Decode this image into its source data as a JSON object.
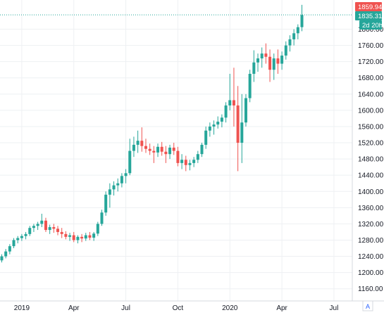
{
  "colors": {
    "up": "#26a69a",
    "down": "#ef5350",
    "grid": "#eef0f3",
    "axis_text": "#131722",
    "last_price_line": "#26a69a"
  },
  "badges": {
    "high": "1859.94",
    "last": "1835.31",
    "countdown": "2d 20h"
  },
  "axis_mode_button": "A",
  "chart_data": {
    "type": "candlestick",
    "timeframe": "weekly",
    "y_ticks": [
      "1160.00",
      "1200.00",
      "1240.00",
      "1280.00",
      "1320.00",
      "1360.00",
      "1400.00",
      "1440.00",
      "1480.00",
      "1520.00",
      "1560.00",
      "1600.00",
      "1640.00",
      "1680.00",
      "1720.00",
      "1760.00",
      "1800.00"
    ],
    "x_ticks": [
      {
        "label": "2019",
        "index": 5
      },
      {
        "label": "Apr",
        "index": 18
      },
      {
        "label": "Jul",
        "index": 31
      },
      {
        "label": "Oct",
        "index": 44
      },
      {
        "label": "2020",
        "index": 57
      },
      {
        "label": "Apr",
        "index": 70
      },
      {
        "label": "Jul",
        "index": 83
      }
    ],
    "ylim": [
      1130,
      1872
    ],
    "grid": true,
    "last_price": 1835.31,
    "high_price": 1859.94,
    "candles": [
      [
        1230,
        1245,
        1225,
        1240
      ],
      [
        1240,
        1258,
        1235,
        1252
      ],
      [
        1252,
        1270,
        1245,
        1265
      ],
      [
        1265,
        1285,
        1260,
        1280
      ],
      [
        1280,
        1290,
        1272,
        1285
      ],
      [
        1285,
        1295,
        1278,
        1290
      ],
      [
        1290,
        1300,
        1282,
        1295
      ],
      [
        1295,
        1315,
        1290,
        1310
      ],
      [
        1310,
        1320,
        1300,
        1315
      ],
      [
        1315,
        1325,
        1305,
        1320
      ],
      [
        1320,
        1345,
        1312,
        1328
      ],
      [
        1328,
        1335,
        1300,
        1305
      ],
      [
        1305,
        1318,
        1295,
        1312
      ],
      [
        1312,
        1320,
        1298,
        1308
      ],
      [
        1308,
        1315,
        1292,
        1300
      ],
      [
        1300,
        1310,
        1285,
        1295
      ],
      [
        1295,
        1302,
        1282,
        1288
      ],
      [
        1288,
        1298,
        1278,
        1292
      ],
      [
        1292,
        1300,
        1275,
        1280
      ],
      [
        1280,
        1292,
        1272,
        1288
      ],
      [
        1288,
        1295,
        1275,
        1284
      ],
      [
        1284,
        1298,
        1278,
        1292
      ],
      [
        1292,
        1300,
        1280,
        1286
      ],
      [
        1286,
        1300,
        1278,
        1296
      ],
      [
        1296,
        1325,
        1290,
        1320
      ],
      [
        1320,
        1355,
        1315,
        1348
      ],
      [
        1348,
        1400,
        1340,
        1392
      ],
      [
        1392,
        1420,
        1360,
        1405
      ],
      [
        1405,
        1425,
        1390,
        1415
      ],
      [
        1415,
        1432,
        1400,
        1420
      ],
      [
        1420,
        1445,
        1410,
        1438
      ],
      [
        1438,
        1455,
        1420,
        1445
      ],
      [
        1445,
        1530,
        1440,
        1500
      ],
      [
        1500,
        1535,
        1485,
        1515
      ],
      [
        1515,
        1550,
        1495,
        1525
      ],
      [
        1525,
        1558,
        1498,
        1512
      ],
      [
        1512,
        1530,
        1495,
        1505
      ],
      [
        1505,
        1518,
        1490,
        1500
      ],
      [
        1500,
        1512,
        1470,
        1496
      ],
      [
        1496,
        1518,
        1485,
        1510
      ],
      [
        1510,
        1522,
        1488,
        1498
      ],
      [
        1498,
        1512,
        1470,
        1492
      ],
      [
        1492,
        1515,
        1480,
        1508
      ],
      [
        1508,
        1520,
        1490,
        1500
      ],
      [
        1500,
        1510,
        1462,
        1470
      ],
      [
        1470,
        1492,
        1455,
        1478
      ],
      [
        1478,
        1488,
        1450,
        1465
      ],
      [
        1465,
        1478,
        1452,
        1470
      ],
      [
        1470,
        1485,
        1460,
        1478
      ],
      [
        1478,
        1500,
        1470,
        1492
      ],
      [
        1492,
        1520,
        1485,
        1515
      ],
      [
        1515,
        1560,
        1505,
        1550
      ],
      [
        1550,
        1570,
        1535,
        1560
      ],
      [
        1560,
        1575,
        1540,
        1565
      ],
      [
        1565,
        1585,
        1555,
        1572
      ],
      [
        1572,
        1590,
        1558,
        1582
      ],
      [
        1582,
        1620,
        1570,
        1612
      ],
      [
        1612,
        1690,
        1600,
        1625
      ],
      [
        1625,
        1705,
        1560,
        1612
      ],
      [
        1612,
        1660,
        1450,
        1520
      ],
      [
        1520,
        1640,
        1470,
        1570
      ],
      [
        1570,
        1640,
        1560,
        1630
      ],
      [
        1630,
        1700,
        1620,
        1690
      ],
      [
        1690,
        1748,
        1670,
        1718
      ],
      [
        1718,
        1740,
        1695,
        1728
      ],
      [
        1728,
        1755,
        1705,
        1740
      ],
      [
        1740,
        1765,
        1715,
        1732
      ],
      [
        1732,
        1750,
        1670,
        1700
      ],
      [
        1700,
        1740,
        1675,
        1728
      ],
      [
        1728,
        1750,
        1690,
        1715
      ],
      [
        1715,
        1745,
        1700,
        1735
      ],
      [
        1735,
        1770,
        1725,
        1760
      ],
      [
        1760,
        1785,
        1745,
        1775
      ],
      [
        1775,
        1800,
        1760,
        1790
      ],
      [
        1790,
        1812,
        1775,
        1805
      ],
      [
        1805,
        1860,
        1795,
        1835
      ]
    ]
  }
}
